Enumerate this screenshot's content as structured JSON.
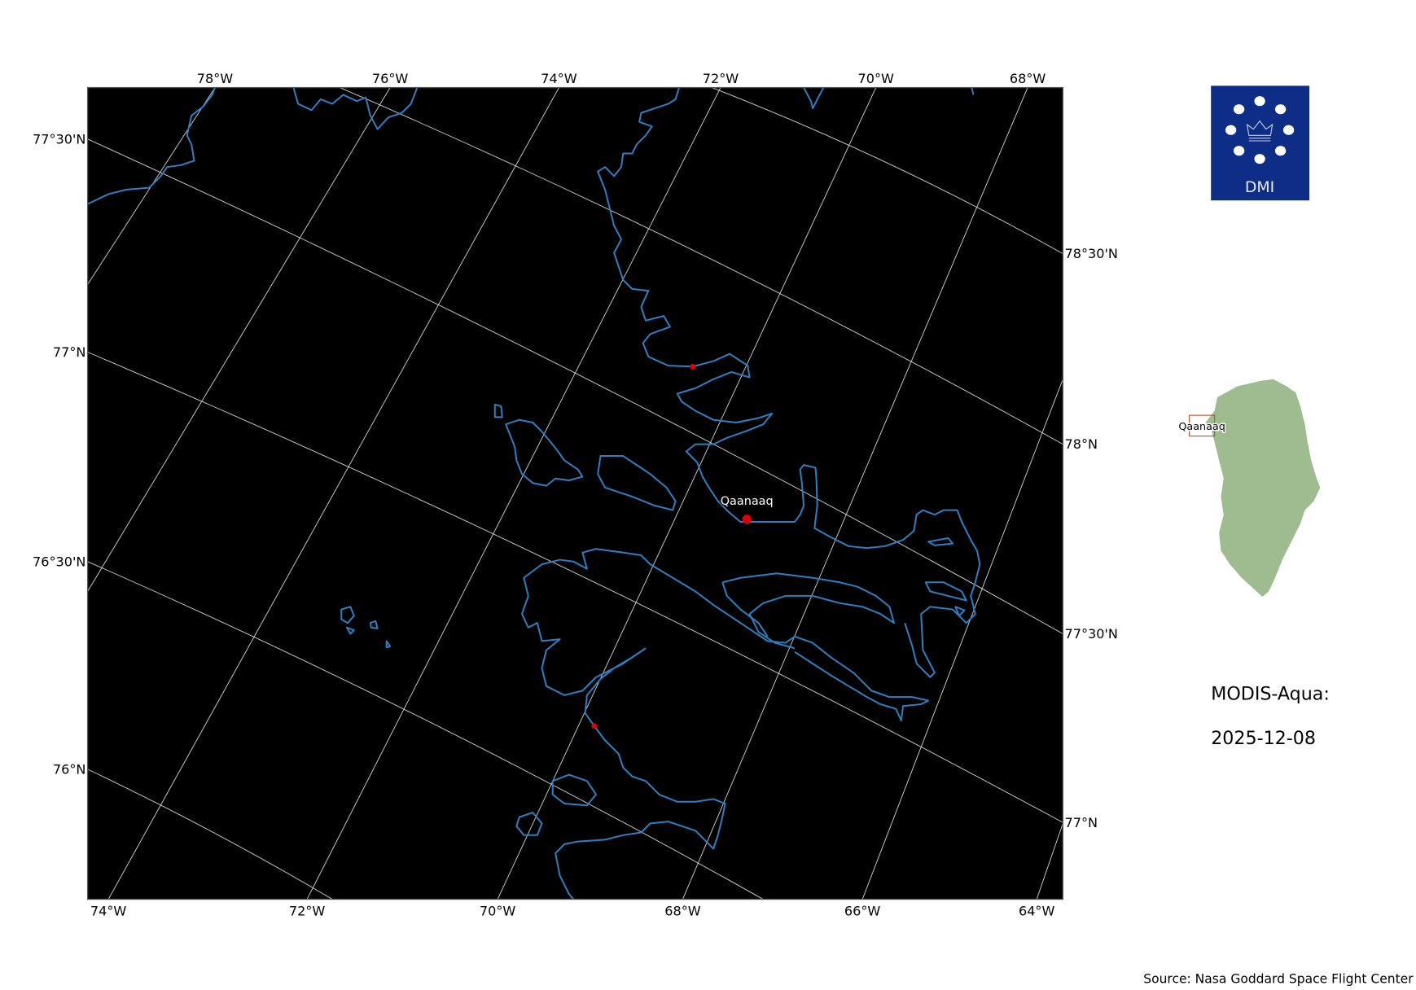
{
  "map": {
    "background_color": "#000000",
    "coastline_color": "#2f7fc1",
    "gridline_color": "#d9d9d9",
    "marker_color": "#e00000",
    "top_lon_labels": [
      "78°W",
      "76°W",
      "74°W",
      "72°W",
      "70°W",
      "68°W"
    ],
    "bottom_lon_labels": [
      "74°W",
      "72°W",
      "70°W",
      "68°W",
      "66°W",
      "64°W"
    ],
    "left_lat_labels": [
      "77°30'N",
      "77°N",
      "76°30'N",
      "76°N"
    ],
    "right_lat_labels": [
      "78°30'N",
      "78°N",
      "77°30'N",
      "77°N"
    ],
    "place_label": "Qaanaaq"
  },
  "logo": {
    "text": "DMI",
    "color": "#0e2d86"
  },
  "inset": {
    "place_label": "Qaanaaq",
    "land_color": "#9fbc91",
    "box_color": "#b5522f"
  },
  "info": {
    "instrument": "MODIS-Aqua:",
    "date": "2025-12-08"
  },
  "source": "Source: Nasa Goddard Space Flight Center"
}
